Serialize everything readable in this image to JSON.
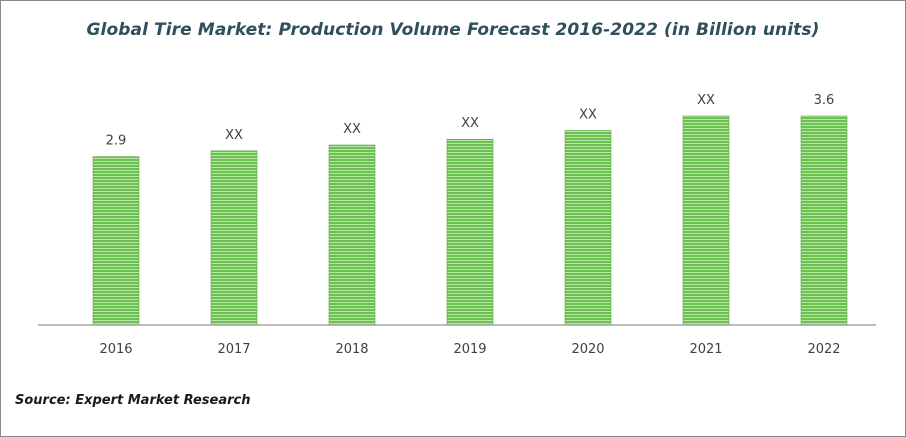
{
  "title": "Global Tire Market: Production Volume Forecast 2016-2022 (in Billion units)",
  "source": "Source: Expert Market Research",
  "colors": {
    "bar": "#6cc052",
    "bar_stripe": "#b8e6a4",
    "axis": "#a6a6a6",
    "text": "#404040"
  },
  "chart_data": {
    "type": "bar",
    "title": "Global Tire Market: Production Volume Forecast 2016-2022 (in Billion units)",
    "categories": [
      "2016",
      "2017",
      "2018",
      "2019",
      "2020",
      "2021",
      "2022"
    ],
    "values": [
      2.9,
      3.0,
      3.1,
      3.2,
      3.35,
      3.6,
      3.6
    ],
    "data_labels": [
      "2.9",
      "XX",
      "XX",
      "XX",
      "XX",
      "XX",
      "3.6"
    ],
    "ylim": [
      0,
      3.6
    ],
    "grid": false,
    "legend": "none"
  }
}
